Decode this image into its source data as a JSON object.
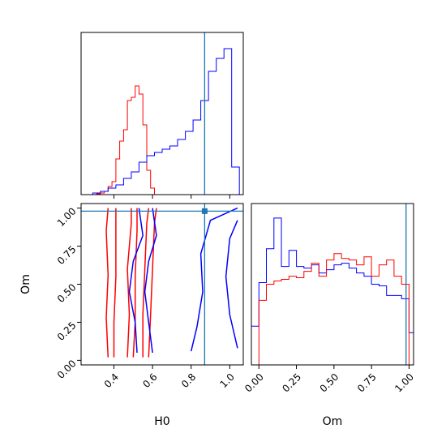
{
  "chart_data": {
    "type": "corner",
    "parameters": [
      "H0",
      "Om"
    ],
    "truths": {
      "H0": 0.87,
      "Om": 0.98
    },
    "colors": {
      "red": "#ff0000",
      "blue": "#0000ff",
      "truth": "#1f77b4"
    },
    "panels": {
      "h0_hist": {
        "type": "histogram",
        "xlim": [
          0.23,
          1.07
        ],
        "xticks": [
          0.4,
          0.6,
          0.8,
          1.0
        ],
        "ylim": [
          0,
          1
        ],
        "series": [
          {
            "color": "red",
            "edges": [
              0.31,
              0.33,
              0.35,
              0.37,
              0.39,
              0.41,
              0.43,
              0.45,
              0.47,
              0.49,
              0.51,
              0.53,
              0.55,
              0.57,
              0.59,
              0.61
            ],
            "values": [
              0.005,
              0.01,
              0.02,
              0.05,
              0.08,
              0.22,
              0.33,
              0.4,
              0.58,
              0.6,
              0.67,
              0.62,
              0.43,
              0.15,
              0.04
            ]
          },
          {
            "color": "blue",
            "edges": [
              0.25,
              0.29,
              0.33,
              0.37,
              0.41,
              0.45,
              0.49,
              0.53,
              0.57,
              0.61,
              0.65,
              0.69,
              0.73,
              0.77,
              0.81,
              0.85,
              0.89,
              0.93,
              0.97,
              1.01,
              1.05
            ],
            "values": [
              0.0,
              0.01,
              0.02,
              0.04,
              0.06,
              0.1,
              0.14,
              0.2,
              0.24,
              0.26,
              0.28,
              0.3,
              0.34,
              0.39,
              0.46,
              0.58,
              0.76,
              0.84,
              0.9,
              0.17
            ]
          }
        ]
      },
      "om_hist": {
        "type": "histogram",
        "xlim": [
          -0.05,
          1.03
        ],
        "xticks": [
          0.0,
          0.25,
          0.5,
          0.75,
          1.0
        ],
        "tick_labels": [
          "0.00",
          "0.25",
          "0.50",
          "0.75",
          "1.00"
        ],
        "xlabel": "Om",
        "ylim": [
          0,
          1
        ],
        "series": [
          {
            "color": "blue",
            "edges": [
              -0.05,
              0.0,
              0.05,
              0.1,
              0.15,
              0.2,
              0.25,
              0.3,
              0.35,
              0.4,
              0.45,
              0.5,
              0.55,
              0.6,
              0.65,
              0.7,
              0.75,
              0.8,
              0.85,
              0.9,
              0.95,
              1.0,
              1.03
            ],
            "values": [
              0.24,
              0.51,
              0.72,
              0.91,
              0.61,
              0.71,
              0.61,
              0.6,
              0.62,
              0.57,
              0.59,
              0.62,
              0.63,
              0.6,
              0.57,
              0.55,
              0.5,
              0.49,
              0.43,
              0.43,
              0.41,
              0.2
            ]
          },
          {
            "color": "red",
            "edges": [
              0.0,
              0.05,
              0.1,
              0.15,
              0.2,
              0.25,
              0.3,
              0.35,
              0.4,
              0.45,
              0.5,
              0.55,
              0.6,
              0.65,
              0.7,
              0.75,
              0.8,
              0.85,
              0.9,
              0.95,
              1.0
            ],
            "values": [
              0.4,
              0.5,
              0.52,
              0.53,
              0.55,
              0.54,
              0.58,
              0.63,
              0.55,
              0.65,
              0.69,
              0.66,
              0.65,
              0.62,
              0.67,
              0.55,
              0.62,
              0.65,
              0.55,
              0.5
            ]
          }
        ]
      },
      "scatter": {
        "type": "contour",
        "xlim": [
          0.23,
          1.07
        ],
        "ylim": [
          -0.03,
          1.03
        ],
        "xticks": [
          0.4,
          0.6,
          0.8,
          1.0
        ],
        "yticks": [
          0.0,
          0.25,
          0.5,
          0.75,
          1.0
        ],
        "xtick_labels": [
          "0.4",
          "0.6",
          "0.8",
          "1.0"
        ],
        "ytick_labels": [
          "0.00",
          "0.25",
          "0.50",
          "0.75",
          "1.00"
        ],
        "xlabel": "H0",
        "ylabel": "Om",
        "contours": [
          {
            "color": "red",
            "points": [
              [
                0.37,
                0.02
              ],
              [
                0.36,
                0.28
              ],
              [
                0.37,
                0.56
              ],
              [
                0.36,
                0.85
              ],
              [
                0.37,
                1.0
              ]
            ]
          },
          {
            "color": "red",
            "points": [
              [
                0.4,
                0.02
              ],
              [
                0.4,
                0.25
              ],
              [
                0.41,
                0.55
              ],
              [
                0.41,
                0.85
              ],
              [
                0.41,
                1.0
              ]
            ]
          },
          {
            "color": "red",
            "points": [
              [
                0.5,
                0.02
              ],
              [
                0.51,
                0.25
              ],
              [
                0.51,
                0.55
              ],
              [
                0.52,
                0.85
              ],
              [
                0.52,
                1.0
              ]
            ]
          },
          {
            "color": "red",
            "points": [
              [
                0.47,
                0.02
              ],
              [
                0.48,
                0.3
              ],
              [
                0.47,
                0.6
              ],
              [
                0.49,
                0.9
              ],
              [
                0.49,
                1.0
              ]
            ]
          },
          {
            "color": "red",
            "points": [
              [
                0.55,
                0.02
              ],
              [
                0.55,
                0.3
              ],
              [
                0.56,
                0.6
              ],
              [
                0.57,
                0.9
              ],
              [
                0.58,
                1.0
              ]
            ]
          },
          {
            "color": "red",
            "points": [
              [
                0.58,
                0.02
              ],
              [
                0.59,
                0.3
              ],
              [
                0.6,
                0.6
              ],
              [
                0.61,
                0.9
              ],
              [
                0.62,
                1.0
              ]
            ]
          },
          {
            "color": "blue",
            "points": [
              [
                0.52,
                0.05
              ],
              [
                0.51,
                0.25
              ],
              [
                0.48,
                0.45
              ],
              [
                0.5,
                0.65
              ],
              [
                0.55,
                0.82
              ],
              [
                0.53,
                1.0
              ]
            ]
          },
          {
            "color": "blue",
            "points": [
              [
                0.6,
                0.05
              ],
              [
                0.58,
                0.25
              ],
              [
                0.56,
                0.45
              ],
              [
                0.58,
                0.65
              ],
              [
                0.62,
                0.82
              ],
              [
                0.6,
                1.0
              ]
            ]
          },
          {
            "color": "blue",
            "points": [
              [
                0.8,
                0.06
              ],
              [
                0.83,
                0.22
              ],
              [
                0.86,
                0.45
              ],
              [
                0.85,
                0.7
              ],
              [
                0.9,
                0.92
              ],
              [
                1.04,
                1.0
              ]
            ]
          },
          {
            "color": "blue",
            "points": [
              [
                1.04,
                0.08
              ],
              [
                1.0,
                0.3
              ],
              [
                0.98,
                0.55
              ],
              [
                1.0,
                0.8
              ],
              [
                1.04,
                0.92
              ]
            ]
          }
        ]
      }
    }
  }
}
